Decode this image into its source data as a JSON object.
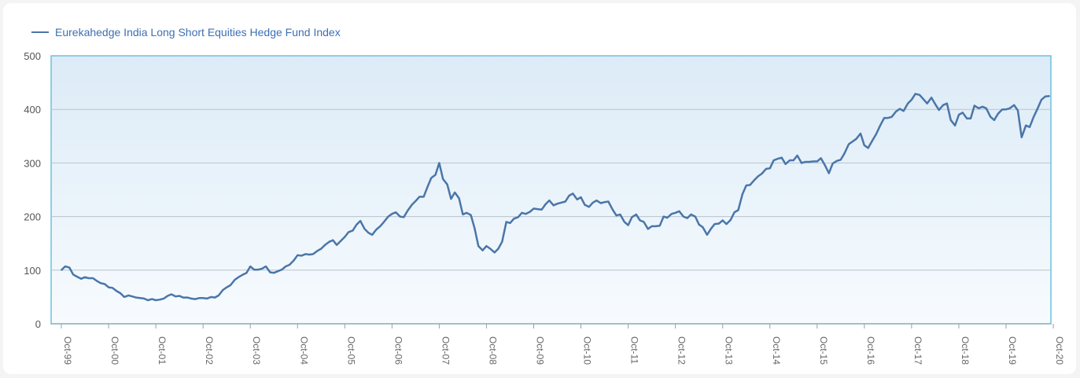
{
  "legend": {
    "label": "Eurekahedge India Long Short Equities Hedge Fund Index",
    "color": "#4a76a8"
  },
  "chart_data": {
    "type": "line",
    "title": "",
    "xlabel": "",
    "ylabel": "",
    "ylim": [
      0,
      500
    ],
    "y_ticks": [
      0,
      100,
      200,
      300,
      400,
      500
    ],
    "x_tick_labels": [
      "Oct-99",
      "Oct-00",
      "Oct-01",
      "Oct-02",
      "Oct-03",
      "Oct-04",
      "Oct-05",
      "Oct-06",
      "Oct-07",
      "Oct-08",
      "Oct-09",
      "Oct-10",
      "Oct-11",
      "Oct-12",
      "Oct-13",
      "Oct-14",
      "Oct-15",
      "Oct-16",
      "Oct-17",
      "Oct-18",
      "Oct-19",
      "Oct-20"
    ],
    "grid": true,
    "legend_position": "top-left",
    "series": [
      {
        "name": "Eurekahedge India Long Short Equities Hedge Fund Index",
        "color": "#4a76a8",
        "x_unit": "years since Oct-99",
        "points": [
          [
            0.0,
            100
          ],
          [
            0.08,
            107
          ],
          [
            0.17,
            105
          ],
          [
            0.25,
            92
          ],
          [
            0.33,
            88
          ],
          [
            0.42,
            84
          ],
          [
            0.5,
            87
          ],
          [
            0.58,
            85
          ],
          [
            0.67,
            85
          ],
          [
            0.75,
            80
          ],
          [
            0.83,
            76
          ],
          [
            0.92,
            74
          ],
          [
            1.0,
            68
          ],
          [
            1.08,
            67
          ],
          [
            1.17,
            61
          ],
          [
            1.25,
            57
          ],
          [
            1.33,
            50
          ],
          [
            1.42,
            53
          ],
          [
            1.5,
            51
          ],
          [
            1.58,
            49
          ],
          [
            1.67,
            48
          ],
          [
            1.75,
            47
          ],
          [
            1.83,
            44
          ],
          [
            1.92,
            46
          ],
          [
            2.0,
            44
          ],
          [
            2.08,
            45
          ],
          [
            2.17,
            47
          ],
          [
            2.25,
            52
          ],
          [
            2.33,
            55
          ],
          [
            2.42,
            51
          ],
          [
            2.5,
            52
          ],
          [
            2.58,
            49
          ],
          [
            2.67,
            49
          ],
          [
            2.75,
            47
          ],
          [
            2.83,
            46
          ],
          [
            2.92,
            48
          ],
          [
            3.0,
            48
          ],
          [
            3.08,
            47
          ],
          [
            3.17,
            50
          ],
          [
            3.25,
            49
          ],
          [
            3.33,
            53
          ],
          [
            3.42,
            63
          ],
          [
            3.5,
            68
          ],
          [
            3.58,
            72
          ],
          [
            3.67,
            82
          ],
          [
            3.75,
            87
          ],
          [
            3.83,
            91
          ],
          [
            3.92,
            95
          ],
          [
            4.0,
            107
          ],
          [
            4.08,
            101
          ],
          [
            4.17,
            101
          ],
          [
            4.25,
            103
          ],
          [
            4.33,
            107
          ],
          [
            4.42,
            96
          ],
          [
            4.5,
            95
          ],
          [
            4.58,
            98
          ],
          [
            4.67,
            101
          ],
          [
            4.75,
            107
          ],
          [
            4.83,
            110
          ],
          [
            4.92,
            118
          ],
          [
            5.0,
            128
          ],
          [
            5.08,
            127
          ],
          [
            5.17,
            130
          ],
          [
            5.25,
            129
          ],
          [
            5.33,
            130
          ],
          [
            5.42,
            136
          ],
          [
            5.5,
            140
          ],
          [
            5.58,
            147
          ],
          [
            5.67,
            153
          ],
          [
            5.75,
            156
          ],
          [
            5.83,
            147
          ],
          [
            5.92,
            155
          ],
          [
            6.0,
            162
          ],
          [
            6.08,
            171
          ],
          [
            6.17,
            174
          ],
          [
            6.25,
            185
          ],
          [
            6.33,
            192
          ],
          [
            6.42,
            177
          ],
          [
            6.5,
            170
          ],
          [
            6.58,
            166
          ],
          [
            6.67,
            176
          ],
          [
            6.75,
            182
          ],
          [
            6.83,
            190
          ],
          [
            6.92,
            200
          ],
          [
            7.0,
            205
          ],
          [
            7.08,
            208
          ],
          [
            7.17,
            200
          ],
          [
            7.25,
            199
          ],
          [
            7.33,
            211
          ],
          [
            7.42,
            222
          ],
          [
            7.5,
            229
          ],
          [
            7.58,
            237
          ],
          [
            7.67,
            237
          ],
          [
            7.75,
            255
          ],
          [
            7.83,
            272
          ],
          [
            7.92,
            278
          ],
          [
            8.0,
            300
          ],
          [
            8.08,
            270
          ],
          [
            8.17,
            260
          ],
          [
            8.25,
            233
          ],
          [
            8.33,
            245
          ],
          [
            8.42,
            234
          ],
          [
            8.5,
            204
          ],
          [
            8.58,
            207
          ],
          [
            8.67,
            203
          ],
          [
            8.75,
            178
          ],
          [
            8.83,
            145
          ],
          [
            8.92,
            137
          ],
          [
            9.0,
            145
          ],
          [
            9.08,
            140
          ],
          [
            9.17,
            133
          ],
          [
            9.25,
            140
          ],
          [
            9.33,
            153
          ],
          [
            9.42,
            190
          ],
          [
            9.5,
            188
          ],
          [
            9.58,
            196
          ],
          [
            9.67,
            199
          ],
          [
            9.75,
            207
          ],
          [
            9.83,
            205
          ],
          [
            9.92,
            209
          ],
          [
            10.0,
            215
          ],
          [
            10.08,
            214
          ],
          [
            10.17,
            213
          ],
          [
            10.25,
            223
          ],
          [
            10.33,
            230
          ],
          [
            10.42,
            221
          ],
          [
            10.5,
            224
          ],
          [
            10.58,
            226
          ],
          [
            10.67,
            228
          ],
          [
            10.75,
            239
          ],
          [
            10.83,
            243
          ],
          [
            10.92,
            232
          ],
          [
            11.0,
            236
          ],
          [
            11.08,
            222
          ],
          [
            11.17,
            218
          ],
          [
            11.25,
            226
          ],
          [
            11.33,
            230
          ],
          [
            11.42,
            225
          ],
          [
            11.5,
            227
          ],
          [
            11.58,
            228
          ],
          [
            11.67,
            213
          ],
          [
            11.75,
            202
          ],
          [
            11.83,
            204
          ],
          [
            11.92,
            190
          ],
          [
            12.0,
            184
          ],
          [
            12.08,
            199
          ],
          [
            12.17,
            204
          ],
          [
            12.25,
            193
          ],
          [
            12.33,
            190
          ],
          [
            12.42,
            177
          ],
          [
            12.5,
            182
          ],
          [
            12.58,
            182
          ],
          [
            12.67,
            183
          ],
          [
            12.75,
            200
          ],
          [
            12.83,
            198
          ],
          [
            12.92,
            205
          ],
          [
            13.0,
            207
          ],
          [
            13.08,
            210
          ],
          [
            13.17,
            200
          ],
          [
            13.25,
            197
          ],
          [
            13.33,
            204
          ],
          [
            13.42,
            200
          ],
          [
            13.5,
            185
          ],
          [
            13.58,
            180
          ],
          [
            13.67,
            166
          ],
          [
            13.75,
            177
          ],
          [
            13.83,
            186
          ],
          [
            13.92,
            187
          ],
          [
            14.0,
            193
          ],
          [
            14.08,
            186
          ],
          [
            14.17,
            194
          ],
          [
            14.25,
            208
          ],
          [
            14.33,
            212
          ],
          [
            14.42,
            242
          ],
          [
            14.5,
            258
          ],
          [
            14.58,
            259
          ],
          [
            14.67,
            268
          ],
          [
            14.75,
            275
          ],
          [
            14.83,
            280
          ],
          [
            14.92,
            289
          ],
          [
            15.0,
            290
          ],
          [
            15.08,
            305
          ],
          [
            15.17,
            308
          ],
          [
            15.25,
            310
          ],
          [
            15.33,
            298
          ],
          [
            15.42,
            305
          ],
          [
            15.5,
            305
          ],
          [
            15.58,
            314
          ],
          [
            15.67,
            300
          ],
          [
            15.75,
            302
          ],
          [
            15.83,
            302
          ],
          [
            15.92,
            303
          ],
          [
            16.0,
            303
          ],
          [
            16.08,
            309
          ],
          [
            16.17,
            295
          ],
          [
            16.25,
            281
          ],
          [
            16.33,
            299
          ],
          [
            16.42,
            304
          ],
          [
            16.5,
            306
          ],
          [
            16.58,
            318
          ],
          [
            16.67,
            335
          ],
          [
            16.75,
            340
          ],
          [
            16.83,
            345
          ],
          [
            16.92,
            355
          ],
          [
            17.0,
            333
          ],
          [
            17.08,
            328
          ],
          [
            17.17,
            342
          ],
          [
            17.25,
            354
          ],
          [
            17.33,
            369
          ],
          [
            17.42,
            384
          ],
          [
            17.5,
            384
          ],
          [
            17.58,
            386
          ],
          [
            17.67,
            396
          ],
          [
            17.75,
            401
          ],
          [
            17.83,
            397
          ],
          [
            17.92,
            411
          ],
          [
            18.0,
            418
          ],
          [
            18.08,
            429
          ],
          [
            18.17,
            427
          ],
          [
            18.25,
            419
          ],
          [
            18.33,
            411
          ],
          [
            18.42,
            422
          ],
          [
            18.5,
            410
          ],
          [
            18.58,
            399
          ],
          [
            18.67,
            408
          ],
          [
            18.75,
            411
          ],
          [
            18.83,
            380
          ],
          [
            18.92,
            370
          ],
          [
            19.0,
            390
          ],
          [
            19.08,
            394
          ],
          [
            19.17,
            383
          ],
          [
            19.25,
            383
          ],
          [
            19.33,
            407
          ],
          [
            19.42,
            402
          ],
          [
            19.5,
            405
          ],
          [
            19.58,
            402
          ],
          [
            19.67,
            386
          ],
          [
            19.75,
            380
          ],
          [
            19.83,
            392
          ],
          [
            19.92,
            400
          ],
          [
            20.0,
            400
          ],
          [
            20.08,
            402
          ],
          [
            20.17,
            408
          ],
          [
            20.25,
            398
          ],
          [
            20.33,
            348
          ],
          [
            20.42,
            370
          ],
          [
            20.5,
            367
          ],
          [
            20.58,
            385
          ],
          [
            20.67,
            402
          ],
          [
            20.75,
            418
          ],
          [
            20.83,
            424
          ],
          [
            20.92,
            425
          ]
        ]
      }
    ]
  }
}
